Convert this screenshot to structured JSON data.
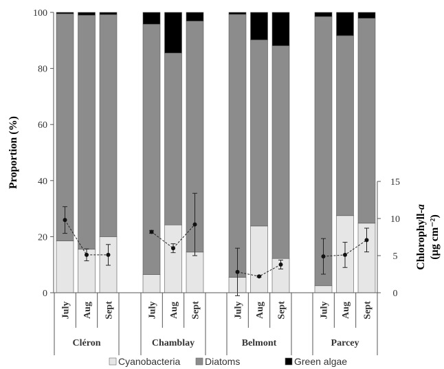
{
  "chart_data": {
    "type": "bar",
    "stacked": true,
    "ylabel": "Proportion (%)",
    "ylim": [
      0,
      100
    ],
    "yticks": [
      0,
      20,
      40,
      60,
      80,
      100
    ],
    "y2label_main": "Chlorophyll-",
    "y2label_italic": "a",
    "y2label_units": "(µg cm⁻²)",
    "y2lim": [
      0,
      15
    ],
    "y2ticks": [
      0,
      5,
      10,
      15
    ],
    "groups": [
      {
        "name": "Cléron",
        "months": [
          "July",
          "Aug",
          "Sept"
        ],
        "cyanobacteria": [
          18.5,
          15.5,
          20
        ],
        "diatoms": [
          81,
          83.5,
          79.2
        ],
        "green_algae": [
          0.5,
          1,
          0.8
        ],
        "chlorophyll_a": [
          9.8,
          5.1,
          5.1
        ],
        "chlorophyll_a_error": [
          1.8,
          0.8,
          1.4
        ]
      },
      {
        "name": "Chamblay",
        "months": [
          "July",
          "Aug",
          "Sept"
        ],
        "cyanobacteria": [
          6.5,
          24.2,
          14.5
        ],
        "diatoms": [
          89.3,
          61.3,
          82.4
        ],
        "green_algae": [
          4.2,
          14.5,
          3.1
        ],
        "chlorophyll_a": [
          8.2,
          6.0,
          9.2
        ],
        "chlorophyll_a_error": [
          0.2,
          0.6,
          4.2
        ]
      },
      {
        "name": "Belmont",
        "months": [
          "July",
          "Aug",
          "Sept"
        ],
        "cyanobacteria": [
          5.5,
          23.8,
          12.2
        ],
        "diatoms": [
          93.8,
          66.4,
          75.9
        ],
        "green_algae": [
          0.7,
          9.8,
          11.9
        ],
        "chlorophyll_a": [
          2.8,
          2.2,
          3.8
        ],
        "chlorophyll_a_error": [
          3.2,
          0.1,
          0.6
        ]
      },
      {
        "name": "Parcey",
        "months": [
          "July",
          "Aug",
          "Sept"
        ],
        "cyanobacteria": [
          2.5,
          27.5,
          24.8
        ],
        "diatoms": [
          96,
          64.2,
          73.1
        ],
        "green_algae": [
          1.5,
          8.3,
          2.1
        ],
        "chlorophyll_a": [
          4.9,
          5.1,
          7.1
        ],
        "chlorophyll_a_error": [
          2.4,
          1.7,
          1.6
        ]
      }
    ],
    "legend": [
      {
        "label": "Cyanobacteria",
        "color": "#e6e6e6"
      },
      {
        "label": "Diatoms",
        "color": "#8c8c8c"
      },
      {
        "label": "Green algae",
        "color": "#000000"
      }
    ],
    "legend_position": "bottom",
    "colors": {
      "cyanobacteria": "#e6e6e6",
      "diatoms": "#8c8c8c",
      "green_algae": "#000000"
    }
  }
}
